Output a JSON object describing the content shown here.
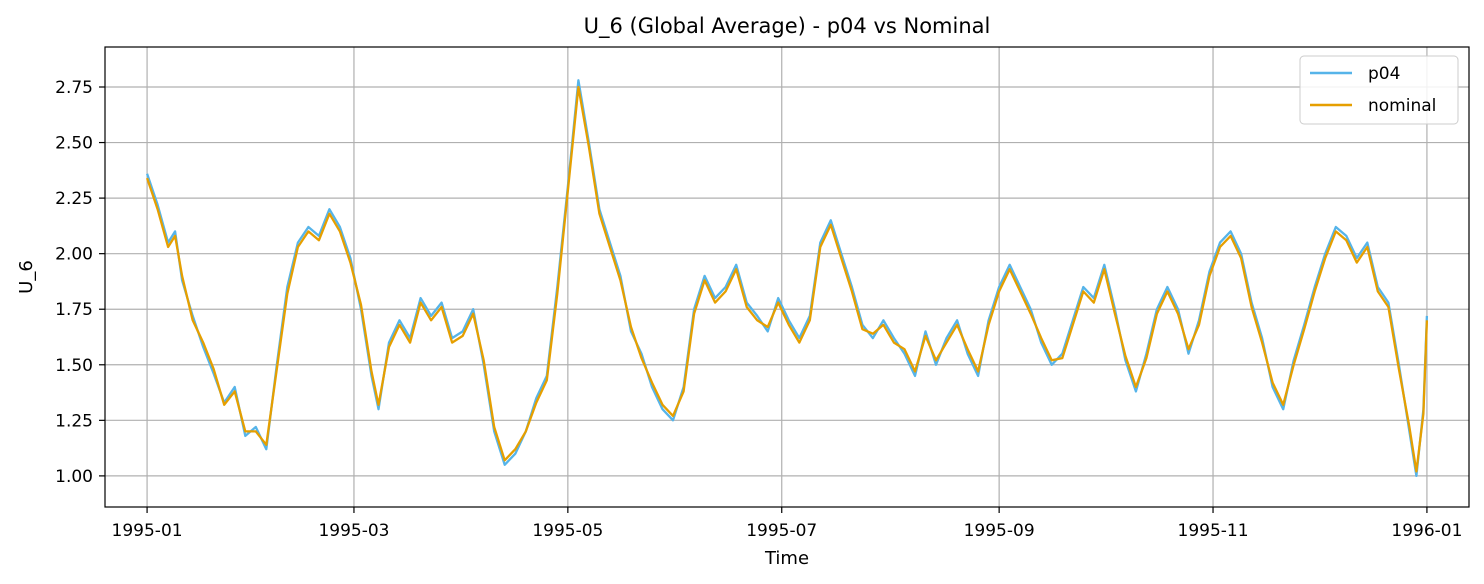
{
  "chart_data": {
    "type": "line",
    "title": "U_6 (Global Average) - p04 vs Nominal",
    "xlabel": "Time",
    "ylabel": "U_6",
    "x_range_days": [
      -12,
      377
    ],
    "ylim": [
      0.86,
      2.93
    ],
    "grid": true,
    "legend_position": "top-right",
    "x_ticks": [
      {
        "label": "1995-01",
        "day": 0
      },
      {
        "label": "1995-03",
        "day": 59
      },
      {
        "label": "1995-05",
        "day": 120
      },
      {
        "label": "1995-07",
        "day": 181
      },
      {
        "label": "1995-09",
        "day": 243
      },
      {
        "label": "1995-11",
        "day": 304
      },
      {
        "label": "1996-01",
        "day": 365
      }
    ],
    "y_ticks": [
      {
        "label": "1.00",
        "value": 1.0
      },
      {
        "label": "1.25",
        "value": 1.25
      },
      {
        "label": "1.50",
        "value": 1.5
      },
      {
        "label": "1.75",
        "value": 1.75
      },
      {
        "label": "2.00",
        "value": 2.0
      },
      {
        "label": "2.25",
        "value": 2.25
      },
      {
        "label": "2.50",
        "value": 2.5
      },
      {
        "label": "2.75",
        "value": 2.75
      }
    ],
    "series": [
      {
        "name": "p04",
        "color": "#56b4e9",
        "points": [
          [
            0,
            2.36
          ],
          [
            3,
            2.22
          ],
          [
            6,
            2.05
          ],
          [
            8,
            2.1
          ],
          [
            10,
            1.88
          ],
          [
            13,
            1.72
          ],
          [
            16,
            1.58
          ],
          [
            19,
            1.46
          ],
          [
            22,
            1.33
          ],
          [
            25,
            1.4
          ],
          [
            28,
            1.18
          ],
          [
            31,
            1.22
          ],
          [
            34,
            1.12
          ],
          [
            37,
            1.5
          ],
          [
            40,
            1.85
          ],
          [
            43,
            2.05
          ],
          [
            46,
            2.12
          ],
          [
            49,
            2.08
          ],
          [
            52,
            2.2
          ],
          [
            55,
            2.12
          ],
          [
            58,
            1.98
          ],
          [
            61,
            1.75
          ],
          [
            64,
            1.45
          ],
          [
            66,
            1.3
          ],
          [
            69,
            1.6
          ],
          [
            72,
            1.7
          ],
          [
            75,
            1.62
          ],
          [
            78,
            1.8
          ],
          [
            81,
            1.72
          ],
          [
            84,
            1.78
          ],
          [
            87,
            1.62
          ],
          [
            90,
            1.65
          ],
          [
            93,
            1.75
          ],
          [
            96,
            1.5
          ],
          [
            99,
            1.2
          ],
          [
            102,
            1.05
          ],
          [
            105,
            1.1
          ],
          [
            108,
            1.2
          ],
          [
            111,
            1.35
          ],
          [
            114,
            1.45
          ],
          [
            117,
            1.85
          ],
          [
            120,
            2.3
          ],
          [
            123,
            2.78
          ],
          [
            126,
            2.5
          ],
          [
            129,
            2.2
          ],
          [
            132,
            2.05
          ],
          [
            135,
            1.9
          ],
          [
            138,
            1.65
          ],
          [
            141,
            1.55
          ],
          [
            144,
            1.4
          ],
          [
            147,
            1.3
          ],
          [
            150,
            1.25
          ],
          [
            153,
            1.4
          ],
          [
            156,
            1.75
          ],
          [
            159,
            1.9
          ],
          [
            162,
            1.8
          ],
          [
            165,
            1.85
          ],
          [
            168,
            1.95
          ],
          [
            171,
            1.78
          ],
          [
            174,
            1.72
          ],
          [
            177,
            1.65
          ],
          [
            180,
            1.8
          ],
          [
            183,
            1.7
          ],
          [
            186,
            1.62
          ],
          [
            189,
            1.72
          ],
          [
            192,
            2.05
          ],
          [
            195,
            2.15
          ],
          [
            198,
            2.0
          ],
          [
            201,
            1.85
          ],
          [
            204,
            1.68
          ],
          [
            207,
            1.62
          ],
          [
            210,
            1.7
          ],
          [
            213,
            1.62
          ],
          [
            216,
            1.55
          ],
          [
            219,
            1.45
          ],
          [
            222,
            1.65
          ],
          [
            225,
            1.5
          ],
          [
            228,
            1.62
          ],
          [
            231,
            1.7
          ],
          [
            234,
            1.55
          ],
          [
            237,
            1.45
          ],
          [
            240,
            1.7
          ],
          [
            243,
            1.85
          ],
          [
            246,
            1.95
          ],
          [
            249,
            1.85
          ],
          [
            252,
            1.75
          ],
          [
            255,
            1.6
          ],
          [
            258,
            1.5
          ],
          [
            261,
            1.55
          ],
          [
            264,
            1.7
          ],
          [
            267,
            1.85
          ],
          [
            270,
            1.8
          ],
          [
            273,
            1.95
          ],
          [
            276,
            1.75
          ],
          [
            279,
            1.52
          ],
          [
            282,
            1.38
          ],
          [
            285,
            1.55
          ],
          [
            288,
            1.75
          ],
          [
            291,
            1.85
          ],
          [
            294,
            1.75
          ],
          [
            297,
            1.55
          ],
          [
            300,
            1.7
          ],
          [
            303,
            1.92
          ],
          [
            306,
            2.05
          ],
          [
            309,
            2.1
          ],
          [
            312,
            2.0
          ],
          [
            315,
            1.78
          ],
          [
            318,
            1.62
          ],
          [
            321,
            1.4
          ],
          [
            324,
            1.3
          ],
          [
            327,
            1.52
          ],
          [
            330,
            1.68
          ],
          [
            333,
            1.85
          ],
          [
            336,
            2.0
          ],
          [
            339,
            2.12
          ],
          [
            342,
            2.08
          ],
          [
            345,
            1.98
          ],
          [
            348,
            2.05
          ],
          [
            351,
            1.85
          ],
          [
            354,
            1.78
          ],
          [
            357,
            1.5
          ],
          [
            360,
            1.2
          ],
          [
            362,
            1.0
          ],
          [
            364,
            1.3
          ],
          [
            365,
            1.72
          ]
        ]
      },
      {
        "name": "nominal",
        "color": "#e69f00",
        "points": [
          [
            0,
            2.34
          ],
          [
            3,
            2.2
          ],
          [
            6,
            2.03
          ],
          [
            8,
            2.08
          ],
          [
            10,
            1.9
          ],
          [
            13,
            1.7
          ],
          [
            16,
            1.6
          ],
          [
            19,
            1.48
          ],
          [
            22,
            1.32
          ],
          [
            25,
            1.38
          ],
          [
            28,
            1.2
          ],
          [
            31,
            1.2
          ],
          [
            34,
            1.14
          ],
          [
            37,
            1.48
          ],
          [
            40,
            1.82
          ],
          [
            43,
            2.03
          ],
          [
            46,
            2.1
          ],
          [
            49,
            2.06
          ],
          [
            52,
            2.18
          ],
          [
            55,
            2.1
          ],
          [
            58,
            1.96
          ],
          [
            61,
            1.77
          ],
          [
            64,
            1.47
          ],
          [
            66,
            1.32
          ],
          [
            69,
            1.58
          ],
          [
            72,
            1.68
          ],
          [
            75,
            1.6
          ],
          [
            78,
            1.78
          ],
          [
            81,
            1.7
          ],
          [
            84,
            1.76
          ],
          [
            87,
            1.6
          ],
          [
            90,
            1.63
          ],
          [
            93,
            1.73
          ],
          [
            96,
            1.52
          ],
          [
            99,
            1.22
          ],
          [
            102,
            1.07
          ],
          [
            105,
            1.12
          ],
          [
            108,
            1.2
          ],
          [
            111,
            1.33
          ],
          [
            114,
            1.43
          ],
          [
            117,
            1.82
          ],
          [
            120,
            2.28
          ],
          [
            123,
            2.75
          ],
          [
            126,
            2.48
          ],
          [
            129,
            2.18
          ],
          [
            132,
            2.03
          ],
          [
            135,
            1.88
          ],
          [
            138,
            1.67
          ],
          [
            141,
            1.53
          ],
          [
            144,
            1.42
          ],
          [
            147,
            1.32
          ],
          [
            150,
            1.27
          ],
          [
            153,
            1.38
          ],
          [
            156,
            1.73
          ],
          [
            159,
            1.88
          ],
          [
            162,
            1.78
          ],
          [
            165,
            1.83
          ],
          [
            168,
            1.93
          ],
          [
            171,
            1.76
          ],
          [
            174,
            1.7
          ],
          [
            177,
            1.67
          ],
          [
            180,
            1.78
          ],
          [
            183,
            1.68
          ],
          [
            186,
            1.6
          ],
          [
            189,
            1.7
          ],
          [
            192,
            2.03
          ],
          [
            195,
            2.13
          ],
          [
            198,
            1.98
          ],
          [
            201,
            1.83
          ],
          [
            204,
            1.66
          ],
          [
            207,
            1.64
          ],
          [
            210,
            1.68
          ],
          [
            213,
            1.6
          ],
          [
            216,
            1.57
          ],
          [
            219,
            1.47
          ],
          [
            222,
            1.63
          ],
          [
            225,
            1.52
          ],
          [
            228,
            1.6
          ],
          [
            231,
            1.68
          ],
          [
            234,
            1.57
          ],
          [
            237,
            1.47
          ],
          [
            240,
            1.68
          ],
          [
            243,
            1.83
          ],
          [
            246,
            1.93
          ],
          [
            249,
            1.83
          ],
          [
            252,
            1.73
          ],
          [
            255,
            1.62
          ],
          [
            258,
            1.52
          ],
          [
            261,
            1.53
          ],
          [
            264,
            1.68
          ],
          [
            267,
            1.83
          ],
          [
            270,
            1.78
          ],
          [
            273,
            1.93
          ],
          [
            276,
            1.73
          ],
          [
            279,
            1.54
          ],
          [
            282,
            1.4
          ],
          [
            285,
            1.53
          ],
          [
            288,
            1.73
          ],
          [
            291,
            1.83
          ],
          [
            294,
            1.73
          ],
          [
            297,
            1.57
          ],
          [
            300,
            1.68
          ],
          [
            303,
            1.9
          ],
          [
            306,
            2.03
          ],
          [
            309,
            2.08
          ],
          [
            312,
            1.98
          ],
          [
            315,
            1.76
          ],
          [
            318,
            1.6
          ],
          [
            321,
            1.42
          ],
          [
            324,
            1.32
          ],
          [
            327,
            1.5
          ],
          [
            330,
            1.66
          ],
          [
            333,
            1.83
          ],
          [
            336,
            1.98
          ],
          [
            339,
            2.1
          ],
          [
            342,
            2.06
          ],
          [
            345,
            1.96
          ],
          [
            348,
            2.03
          ],
          [
            351,
            1.83
          ],
          [
            354,
            1.76
          ],
          [
            357,
            1.48
          ],
          [
            360,
            1.22
          ],
          [
            362,
            1.02
          ],
          [
            364,
            1.28
          ],
          [
            365,
            1.7
          ]
        ]
      }
    ]
  }
}
